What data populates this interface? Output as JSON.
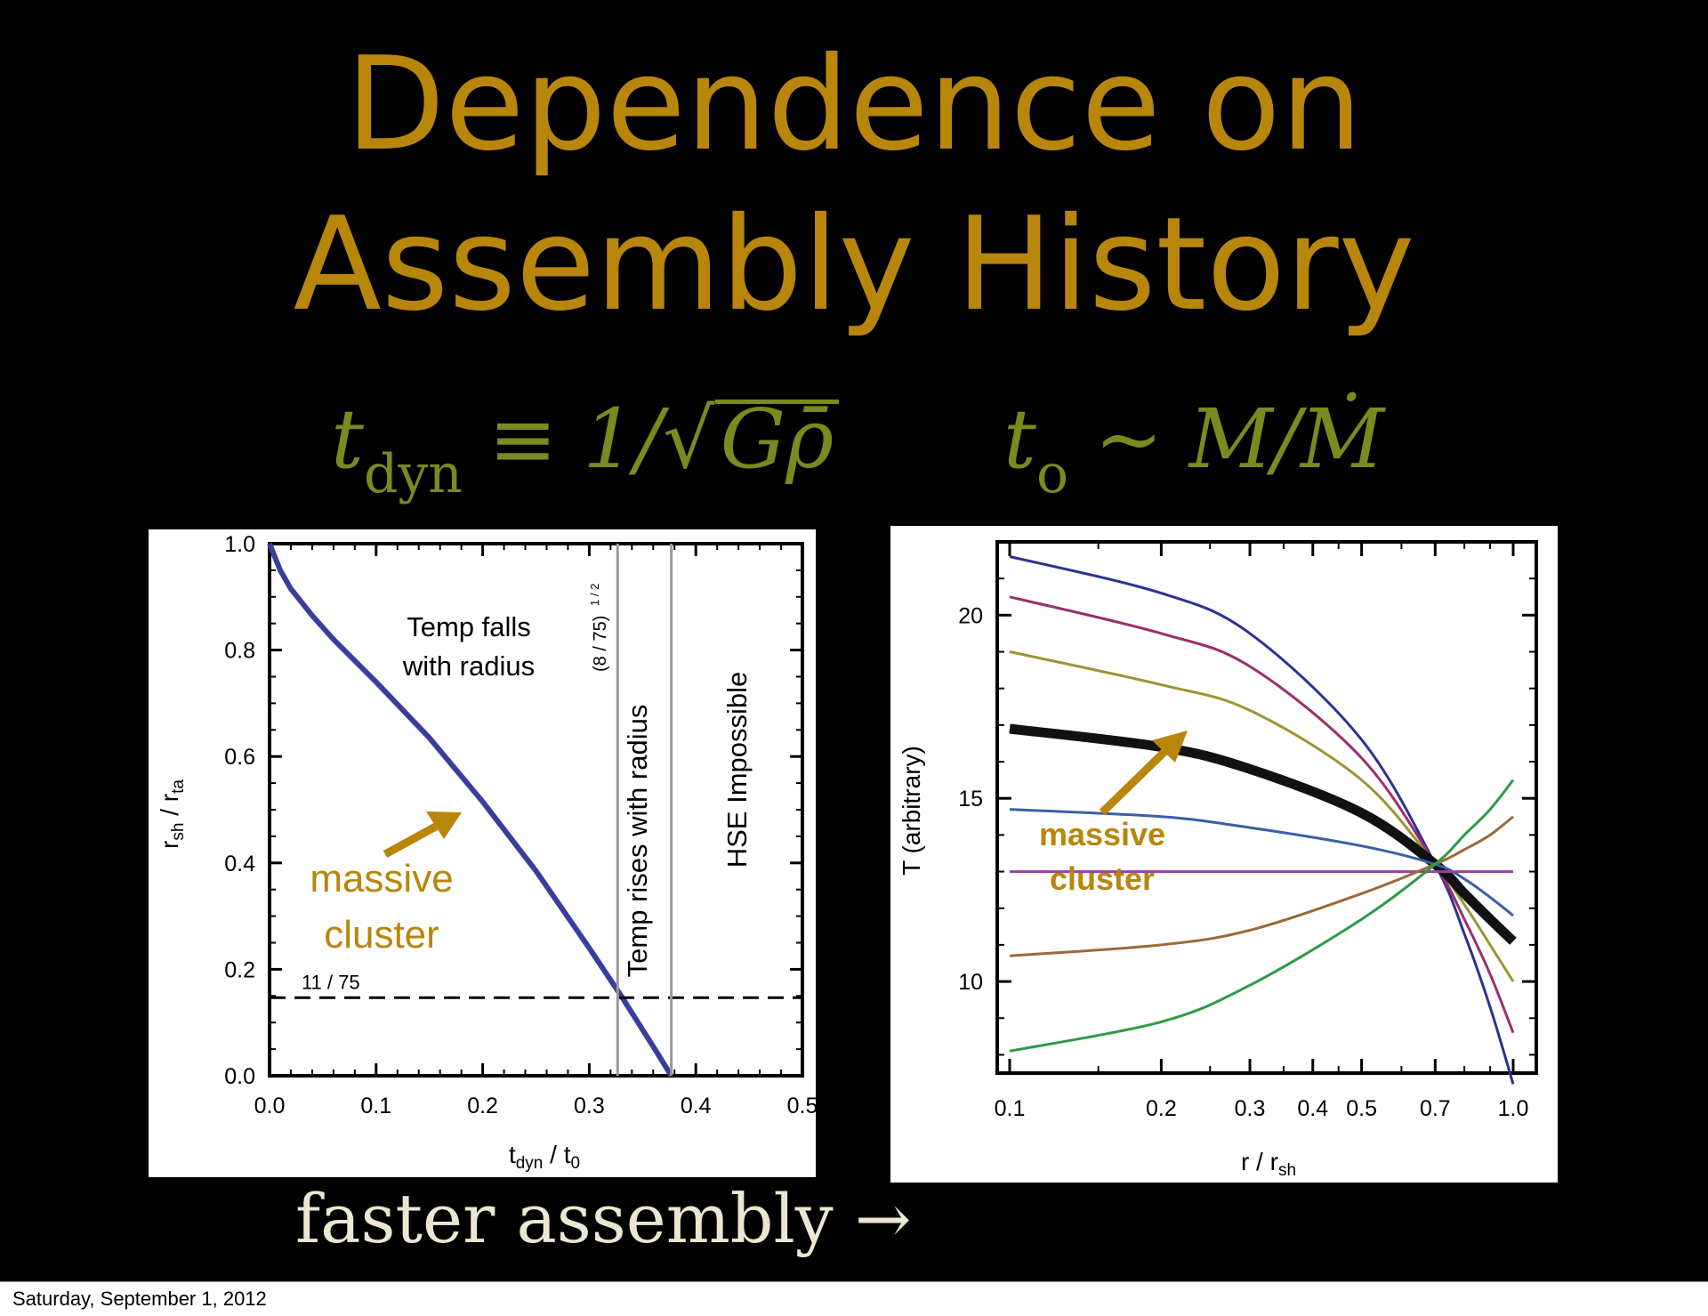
{
  "title": {
    "line1": "Dependence on",
    "line2": "Assembly History"
  },
  "equations": {
    "left_t": "t",
    "left_sub": "dyn",
    "left_mid": " ≡ 1/√",
    "left_rad": "Gρ̄",
    "right_t": "t",
    "right_sub": "o",
    "right_rest": " ~ M/Ṁ"
  },
  "caption": "faster assembly →",
  "footer": {
    "date": "Saturday, September 1, 2012"
  },
  "colors": {
    "gold": "#b8860b",
    "olive": "#7a8a1e",
    "curve_blue": "#3a3e9a"
  },
  "chart_data": [
    {
      "type": "line",
      "xlabel": "t_dyn / t_0",
      "ylabel": "r_sh / r_ta",
      "xlim": [
        0.0,
        0.5
      ],
      "ylim": [
        0.0,
        1.0
      ],
      "xticks": [
        "0.0",
        "0.1",
        "0.2",
        "0.3",
        "0.4",
        "0.5"
      ],
      "yticks": [
        "0.0",
        "0.2",
        "0.4",
        "0.6",
        "0.8",
        "1.0"
      ],
      "series": [
        {
          "x": [
            0.0,
            0.01,
            0.02,
            0.04,
            0.06,
            0.1,
            0.15,
            0.2,
            0.25,
            0.3,
            0.33,
            0.36,
            0.377
          ],
          "y": [
            1.0,
            0.95,
            0.915,
            0.865,
            0.82,
            0.74,
            0.635,
            0.515,
            0.385,
            0.24,
            0.15,
            0.055,
            0.0
          ]
        }
      ],
      "hline": {
        "y": 0.1467,
        "label": "11 / 75"
      },
      "vlines": [
        {
          "x": 0.3266,
          "label": "(8 / 75)^1/2"
        },
        {
          "x": 0.377
        }
      ],
      "annotations": {
        "region1_line1": "Temp falls",
        "region1_line2": "with radius",
        "region2": "Temp rises with radius",
        "region3": "HSE Impossible",
        "vline_label": "(8 / 75)",
        "vline_label_exp": "1 / 2",
        "cluster_line1": "massive",
        "cluster_line2": "cluster"
      }
    },
    {
      "type": "line",
      "xlabel": "r / r_sh",
      "ylabel": "T (arbitrary)",
      "x_scale": "log",
      "xlim": [
        0.1,
        1.0
      ],
      "ylim": [
        7.5,
        22
      ],
      "xticks": [
        "0.1",
        "0.2",
        "0.3",
        "0.4",
        "0.5",
        "0.7",
        "1.0"
      ],
      "yticks": [
        "10",
        "15",
        "20"
      ],
      "series": [
        {
          "color": "#2e3192",
          "x": [
            0.1,
            0.2,
            0.3,
            0.5,
            0.7,
            0.8,
            0.9,
            1.0
          ],
          "y": [
            21.6,
            20.6,
            19.5,
            16.6,
            13.2,
            11.3,
            9.3,
            7.2
          ]
        },
        {
          "color": "#9b2f6b",
          "x": [
            0.1,
            0.2,
            0.3,
            0.5,
            0.7,
            0.8,
            0.9,
            1.0
          ],
          "y": [
            20.5,
            19.5,
            18.6,
            16.1,
            13.2,
            11.7,
            10.2,
            8.6
          ]
        },
        {
          "color": "#9a9632",
          "x": [
            0.1,
            0.2,
            0.3,
            0.5,
            0.7,
            0.8,
            0.9,
            1.0
          ],
          "y": [
            19.0,
            18.1,
            17.4,
            15.5,
            13.2,
            12.1,
            11.0,
            10.0
          ]
        },
        {
          "color": "#111111",
          "thick": true,
          "x": [
            0.1,
            0.2,
            0.3,
            0.5,
            0.7,
            0.8,
            0.9,
            1.0
          ],
          "y": [
            16.9,
            16.4,
            15.8,
            14.6,
            13.2,
            12.4,
            11.7,
            11.1
          ]
        },
        {
          "color": "#3a5ea8",
          "x": [
            0.1,
            0.2,
            0.3,
            0.5,
            0.7,
            0.8,
            0.9,
            1.0
          ],
          "y": [
            14.7,
            14.5,
            14.2,
            13.7,
            13.2,
            12.8,
            12.3,
            11.8
          ]
        },
        {
          "color": "#9b3fa1",
          "x": [
            0.1,
            0.7,
            1.0
          ],
          "y": [
            13.0,
            13.0,
            13.0
          ]
        },
        {
          "color": "#9a6a3a",
          "x": [
            0.1,
            0.2,
            0.3,
            0.5,
            0.7,
            0.8,
            0.9,
            1.0
          ],
          "y": [
            10.7,
            11.0,
            11.4,
            12.4,
            13.2,
            13.6,
            14.0,
            14.5
          ]
        },
        {
          "color": "#2f9a48",
          "x": [
            0.1,
            0.2,
            0.3,
            0.5,
            0.7,
            0.8,
            0.9,
            1.0
          ],
          "y": [
            8.1,
            8.9,
            9.9,
            11.7,
            13.2,
            14.0,
            14.7,
            15.5
          ]
        }
      ],
      "annotations": {
        "cluster_line1": "massive",
        "cluster_line2": "cluster"
      }
    }
  ]
}
